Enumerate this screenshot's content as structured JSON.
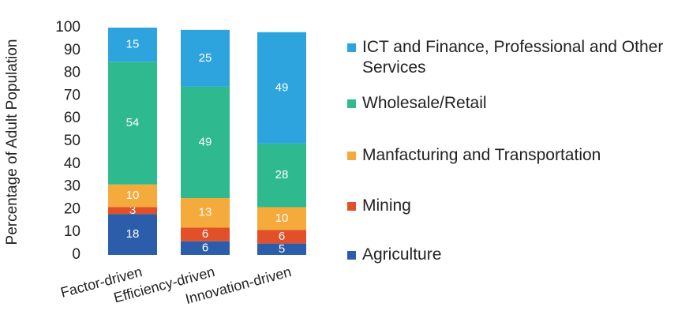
{
  "chart_data": {
    "type": "bar",
    "stacked": true,
    "ylabel": "Percentage of Adult Population",
    "categories": [
      "Factor-driven",
      "Efficiency-driven",
      "Innovation-driven"
    ],
    "series": [
      {
        "name": "Agriculture",
        "color": "#2b5dab",
        "values": [
          18,
          6,
          5
        ]
      },
      {
        "name": "Mining",
        "color": "#e2502a",
        "values": [
          3,
          6,
          6
        ]
      },
      {
        "name": "Manfacturing and Transportation",
        "color": "#f5aa3c",
        "values": [
          10,
          13,
          10
        ]
      },
      {
        "name": "Wholesale/Retail",
        "color": "#2fb98f",
        "values": [
          54,
          49,
          28
        ]
      },
      {
        "name": "ICT and Finance, Professional and Other Services",
        "color": "#2ea4de",
        "values": [
          15,
          25,
          49
        ]
      }
    ],
    "ylim": [
      0,
      100
    ],
    "yticks": [
      0,
      10,
      20,
      30,
      40,
      50,
      60,
      70,
      80,
      90,
      100
    ]
  }
}
